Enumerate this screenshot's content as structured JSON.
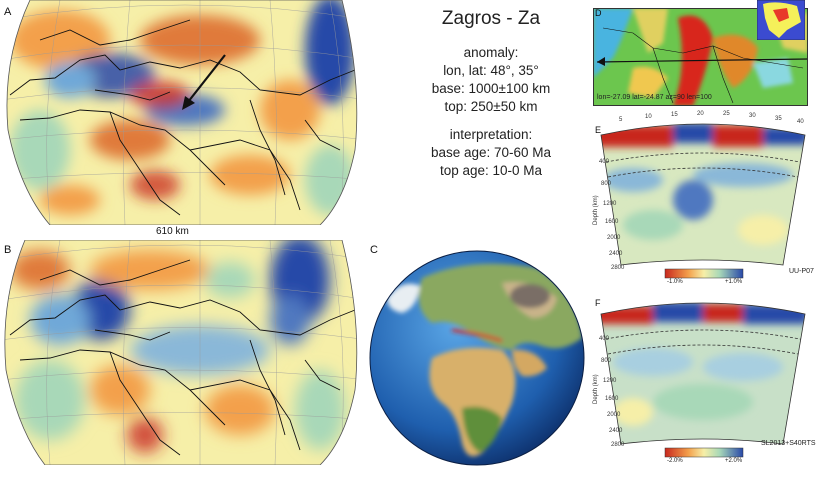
{
  "figure": {
    "title": "Zagros - Za",
    "anomaly": {
      "heading": "anomaly:",
      "lonlat": "lon, lat: 48°, 35°",
      "base": "base: 1000±100 km",
      "top": "top: 250±50 km"
    },
    "interpretation": {
      "heading": "interpretation:",
      "base_age": "base age: 70-60 Ma",
      "top_age": "top age: 10-0 Ma"
    }
  },
  "panels": {
    "a": {
      "letter": "A",
      "scale_label": "610 km"
    },
    "b": {
      "letter": "B"
    },
    "c": {
      "letter": "C"
    },
    "d": {
      "letter": "D",
      "profile_label": "lon=-27.09 lat=-24.87 az=90 len=100"
    },
    "e": {
      "letter": "E",
      "model": "UU-P07",
      "depth_axis": "Depth (km)",
      "depth_ticks": [
        "400",
        "800",
        "1200",
        "1600",
        "2000",
        "2400",
        "2800"
      ],
      "distance_ticks": [
        "5",
        "10",
        "15",
        "20",
        "25",
        "30",
        "35",
        "40"
      ],
      "colorbar_min": "-1.0%",
      "colorbar_max": "+1.0%"
    },
    "f": {
      "letter": "F",
      "model": "SL2013+S40RTS",
      "depth_axis": "Depth (km)",
      "depth_ticks": [
        "400",
        "800",
        "1200",
        "1600",
        "2000",
        "2400",
        "2800"
      ],
      "colorbar_min": "-2.0%",
      "colorbar_max": "+2.0%"
    }
  },
  "colors": {
    "slow": "#c8281e",
    "warm": "#f3a04c",
    "neutral": "#f6efa8",
    "cool": "#a8d8b8",
    "fast": "#2848a8"
  }
}
